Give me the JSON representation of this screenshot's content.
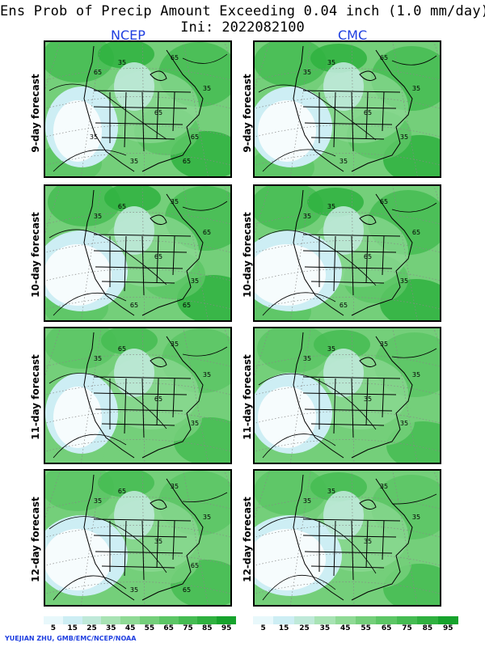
{
  "title": "Ens Prob of Precip Amount Exceeding 0.04 inch (1.0 mm/day)",
  "init": "Ini: 2022082100",
  "columns": [
    "NCEP",
    "CMC"
  ],
  "rows": [
    "9-day forecast",
    "10-day forecast",
    "11-day forecast",
    "12-day forecast"
  ],
  "colorbar": {
    "labels": [
      "5",
      "15",
      "25",
      "35",
      "45",
      "55",
      "65",
      "75",
      "85",
      "95"
    ],
    "colors": [
      "#e8f8fb",
      "#cdeef4",
      "#bfe9d9",
      "#a8e3b4",
      "#8fda95",
      "#74cf7a",
      "#5cc665",
      "#45bc52",
      "#2fb13f",
      "#16a32c"
    ]
  },
  "contour_label": "35",
  "panel_labels": {
    "ncep_9": [
      "35",
      "65",
      "65",
      "35",
      "65",
      "65",
      "35",
      "65",
      "35"
    ],
    "cmc_9": [
      "35",
      "65",
      "35",
      "35",
      "65",
      "35",
      "35"
    ],
    "ncep_10": [
      "65",
      "35",
      "35",
      "65",
      "65",
      "35",
      "65",
      "65"
    ],
    "cmc_10": [
      "35",
      "65",
      "35",
      "65",
      "65",
      "35",
      "65"
    ],
    "ncep_11": [
      "65",
      "35",
      "35",
      "35",
      "65",
      "35"
    ],
    "cmc_11": [
      "35",
      "35",
      "35",
      "35",
      "35",
      "35"
    ],
    "ncep_12": [
      "65",
      "35",
      "35",
      "35",
      "35",
      "65",
      "35",
      "65"
    ],
    "cmc_12": [
      "35",
      "35",
      "35",
      "35",
      "35"
    ]
  },
  "credit": "YUEJIAN ZHU, GMB/EMC/NCEP/NOAA"
}
